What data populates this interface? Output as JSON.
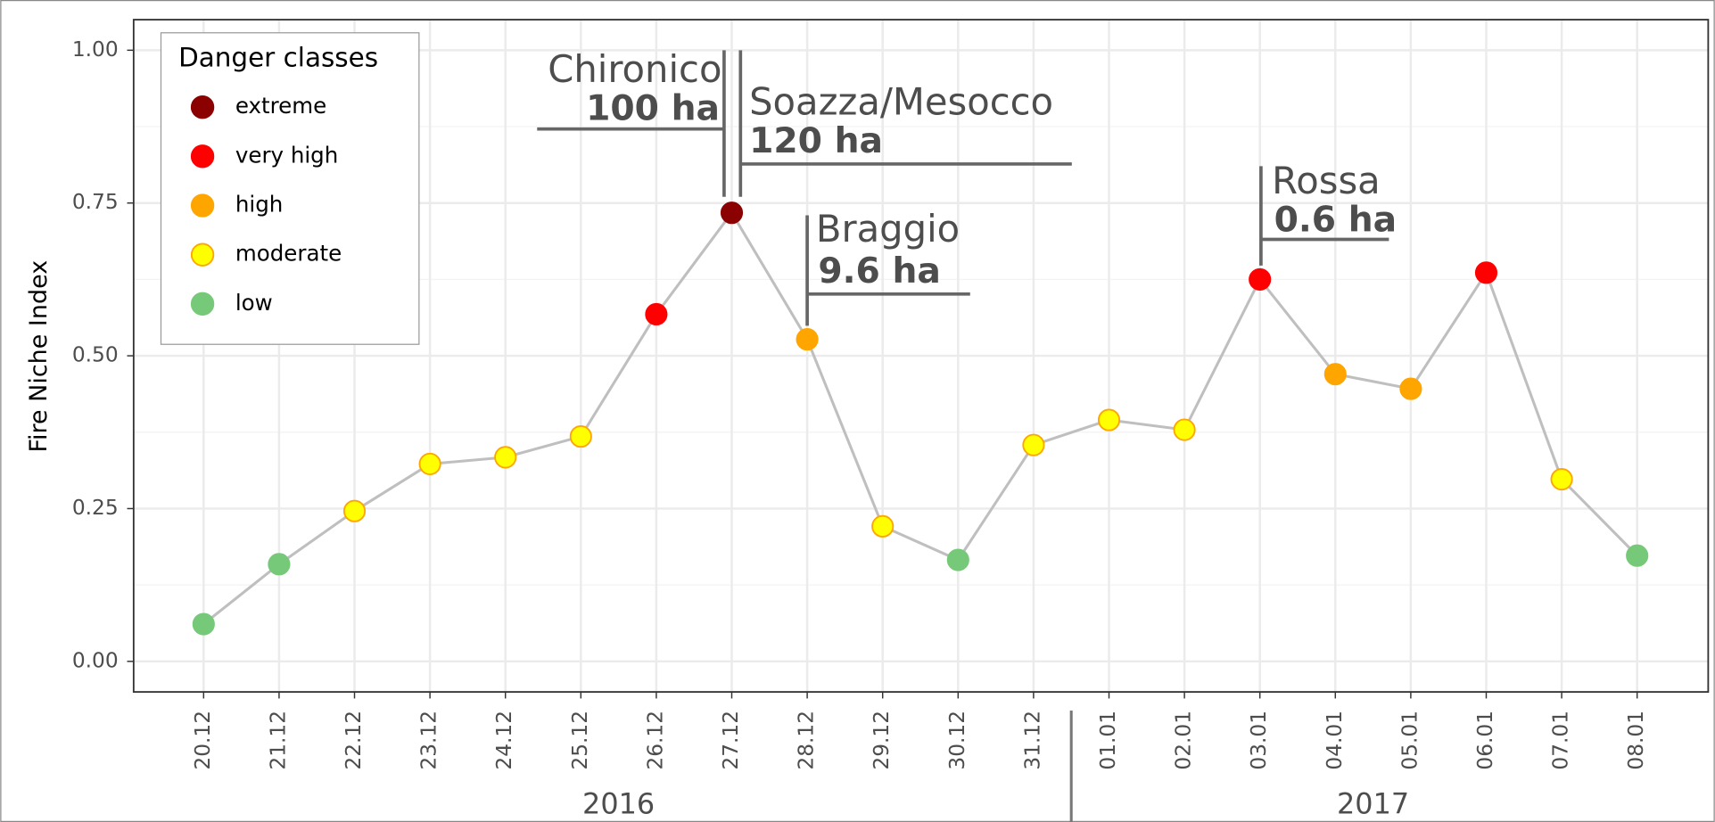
{
  "chart_data": {
    "type": "line",
    "y_label": "Fire Niche Index",
    "categories": [
      "20.12",
      "21.12",
      "22.12",
      "23.12",
      "24.12",
      "25.12",
      "26.12",
      "27.12",
      "28.12",
      "29.12",
      "30.12",
      "31.12",
      "01.01",
      "02.01",
      "03.01",
      "04.01",
      "05.01",
      "06.01",
      "07.01",
      "08.01"
    ],
    "values": [
      0.061,
      0.159,
      0.246,
      0.323,
      0.334,
      0.368,
      0.568,
      0.734,
      0.527,
      0.221,
      0.166,
      0.354,
      0.395,
      0.379,
      0.625,
      0.47,
      0.446,
      0.636,
      0.298,
      0.173
    ],
    "point_classes": [
      "low",
      "low",
      "moderate",
      "moderate",
      "moderate",
      "moderate",
      "very high",
      "extreme",
      "high",
      "moderate",
      "low",
      "moderate",
      "moderate",
      "moderate",
      "very high",
      "high",
      "high",
      "very high",
      "moderate",
      "low"
    ],
    "line_color": "#bfbfbf",
    "ylim": [
      -0.05,
      1.05
    ],
    "yticks": [
      {
        "value": 0,
        "label": "0.00"
      },
      {
        "value": 0.25,
        "label": "0.25"
      },
      {
        "value": 0.5,
        "label": "0.50"
      },
      {
        "value": 0.75,
        "label": "0.75"
      },
      {
        "value": 1,
        "label": "1.00"
      }
    ],
    "grid": true,
    "years": [
      "2016",
      "2017"
    ],
    "legend": {
      "title": "Danger classes",
      "position": "top-left",
      "classes": [
        {
          "name": "extreme",
          "color": "#8b0000"
        },
        {
          "name": "very high",
          "color": "#ff0000"
        },
        {
          "name": "high",
          "color": "#ffa500"
        },
        {
          "name": "moderate",
          "color": "#ffff00"
        },
        {
          "name": "low",
          "color": "#77c97a"
        }
      ]
    },
    "annotations": [
      {
        "place": "Chironico",
        "area": "100 ha",
        "category": "27.12"
      },
      {
        "place": "Soazza/Mesocco",
        "area": "120 ha",
        "category": "27.12"
      },
      {
        "place": "Braggio",
        "area": "9.6 ha",
        "category": "28.12"
      },
      {
        "place": "Rossa",
        "area": "0.6 ha",
        "category": "03.01"
      }
    ]
  }
}
